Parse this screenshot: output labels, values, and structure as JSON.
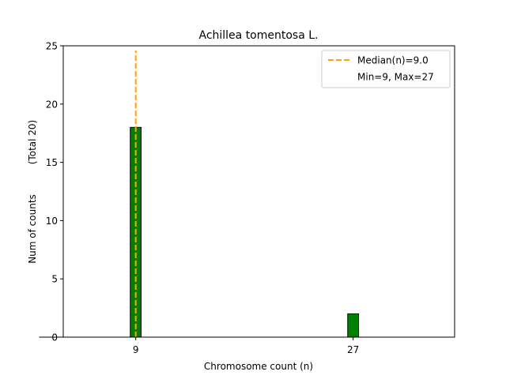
{
  "chart_data": {
    "type": "bar",
    "title": "Achillea tomentosa L.",
    "xlabel": "Chromosome count (n)",
    "ylabel": "Num of counts",
    "ylabel_note": "(Total 20)",
    "categories": [
      "9",
      "27"
    ],
    "x": [
      9,
      27
    ],
    "values": [
      18,
      2
    ],
    "xlim": [
      3.0,
      35.4
    ],
    "ylim": [
      0,
      25
    ],
    "yticks": [
      0,
      5,
      10,
      15,
      20,
      25
    ],
    "xticks": [
      9,
      27
    ],
    "bar_color": "#008000",
    "bar_edge_color": "#000000",
    "median": 9.0,
    "median_color": "#FFA500",
    "legend_position": "top-right",
    "legend": [
      {
        "label": "Median(n)=9.0",
        "style": "dashed-line",
        "color": "#FFA500"
      },
      {
        "label": "Min=9, Max=27",
        "style": "none"
      }
    ],
    "grid": false
  }
}
